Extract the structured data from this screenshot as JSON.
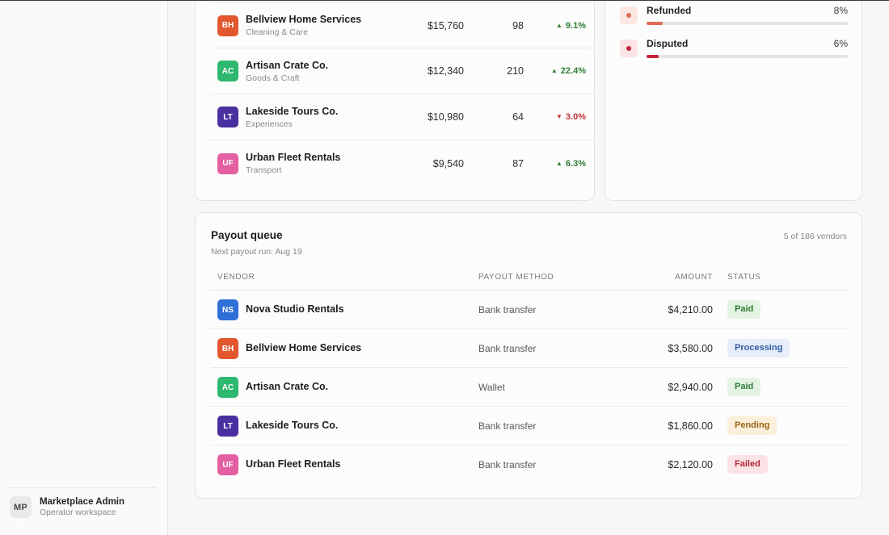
{
  "user": {
    "initials": "MP",
    "name": "Marketplace Admin",
    "workspace": "Operator workspace"
  },
  "vendors": [
    {
      "initials": "BH",
      "name": "Bellview Home Services",
      "category": "Cleaning & Care",
      "revenue": "$15,760",
      "orders": "98",
      "growth": "9.1%",
      "trend": "up",
      "color": "#e2572e"
    },
    {
      "initials": "AC",
      "name": "Artisan Crate Co.",
      "category": "Goods & Craft",
      "revenue": "$12,340",
      "orders": "210",
      "growth": "22.4%",
      "trend": "up",
      "color": "#2fb86f"
    },
    {
      "initials": "LT",
      "name": "Lakeside Tours Co.",
      "category": "Experiences",
      "revenue": "$10,980",
      "orders": "64",
      "growth": "3.0%",
      "trend": "down",
      "color": "#4a2fa0"
    },
    {
      "initials": "UF",
      "name": "Urban Fleet Rentals",
      "category": "Transport",
      "revenue": "$9,540",
      "orders": "87",
      "growth": "6.3%",
      "trend": "up",
      "color": "#e45fa1"
    }
  ],
  "status_breakdown": [
    {
      "label": "Refunded",
      "percent": "8%",
      "value": 0.08,
      "color": "#e06a55",
      "icon_bg": "#fbe6e2"
    },
    {
      "label": "Disputed",
      "percent": "6%",
      "value": 0.06,
      "color": "#c0253a",
      "icon_bg": "#fbe3e6"
    }
  ],
  "payout": {
    "title": "Payout queue",
    "subtitle": "Next payout run: Aug 19",
    "count": "5 of 186 vendors",
    "columns": {
      "vendor": "VENDOR",
      "method": "PAYOUT METHOD",
      "amount": "AMOUNT",
      "status": "STATUS"
    },
    "rows": [
      {
        "initials": "NS",
        "name": "Nova Studio Rentals",
        "method": "Bank transfer",
        "amount": "$4,210.00",
        "status": "Paid",
        "status_key": "paid",
        "color": "#2f6fd8"
      },
      {
        "initials": "BH",
        "name": "Bellview Home Services",
        "method": "Bank transfer",
        "amount": "$3,580.00",
        "status": "Processing",
        "status_key": "processing",
        "color": "#e2572e"
      },
      {
        "initials": "AC",
        "name": "Artisan Crate Co.",
        "method": "Wallet",
        "amount": "$2,940.00",
        "status": "Paid",
        "status_key": "paid",
        "color": "#2fb86f"
      },
      {
        "initials": "LT",
        "name": "Lakeside Tours Co.",
        "method": "Bank transfer",
        "amount": "$1,860.00",
        "status": "Pending",
        "status_key": "pending",
        "color": "#4a2fa0"
      },
      {
        "initials": "UF",
        "name": "Urban Fleet Rentals",
        "method": "Bank transfer",
        "amount": "$2,120.00",
        "status": "Failed",
        "status_key": "failed",
        "color": "#e45fa1"
      }
    ]
  }
}
